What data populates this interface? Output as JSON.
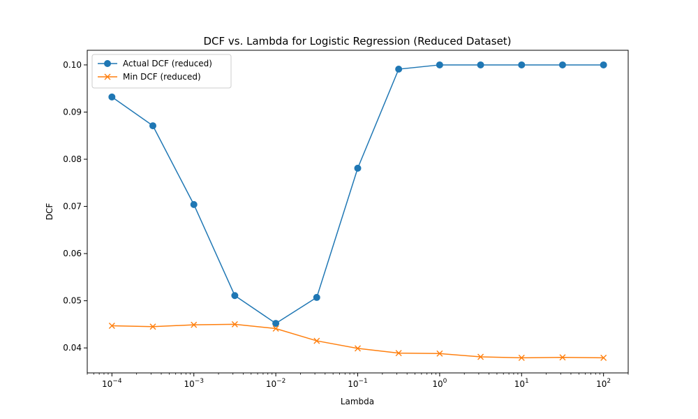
{
  "chart_data": {
    "type": "line",
    "title": "DCF vs. Lambda for Logistic Regression (Reduced Dataset)",
    "xlabel": "Lambda",
    "ylabel": "DCF",
    "xscale": "log",
    "xlim": [
      5e-05,
      200
    ],
    "ylim": [
      0.0347,
      0.1031
    ],
    "x_ticks": [
      {
        "value": 0.0001,
        "base": "10",
        "exp": "−4"
      },
      {
        "value": 0.001,
        "base": "10",
        "exp": "−3"
      },
      {
        "value": 0.01,
        "base": "10",
        "exp": "−2"
      },
      {
        "value": 0.1,
        "base": "10",
        "exp": "−1"
      },
      {
        "value": 1,
        "base": "10",
        "exp": "0"
      },
      {
        "value": 10,
        "base": "10",
        "exp": "1"
      },
      {
        "value": 100,
        "base": "10",
        "exp": "2"
      }
    ],
    "y_ticks": [
      {
        "value": 0.04,
        "label": "0.04"
      },
      {
        "value": 0.05,
        "label": "0.05"
      },
      {
        "value": 0.06,
        "label": "0.06"
      },
      {
        "value": 0.07,
        "label": "0.07"
      },
      {
        "value": 0.08,
        "label": "0.08"
      },
      {
        "value": 0.09,
        "label": "0.09"
      },
      {
        "value": 0.1,
        "label": "0.10"
      }
    ],
    "grid": false,
    "legend_position": "top-left",
    "x": [
      0.0001,
      0.000316,
      0.001,
      0.00316,
      0.01,
      0.0316,
      0.1,
      0.316,
      1,
      3.16,
      10,
      31.6,
      100
    ],
    "series": [
      {
        "name": "Actual DCF (reduced)",
        "color": "#1f77b4",
        "marker": "circle",
        "values": [
          0.0932,
          0.0871,
          0.0704,
          0.0511,
          0.0452,
          0.0507,
          0.0781,
          0.0991,
          0.1,
          0.1,
          0.1,
          0.1,
          0.1
        ]
      },
      {
        "name": "Min DCF (reduced)",
        "color": "#ff7f0e",
        "marker": "x",
        "values": [
          0.0447,
          0.0445,
          0.0449,
          0.045,
          0.0441,
          0.0415,
          0.0399,
          0.0389,
          0.0388,
          0.0381,
          0.0379,
          0.038,
          0.0379
        ]
      }
    ]
  }
}
